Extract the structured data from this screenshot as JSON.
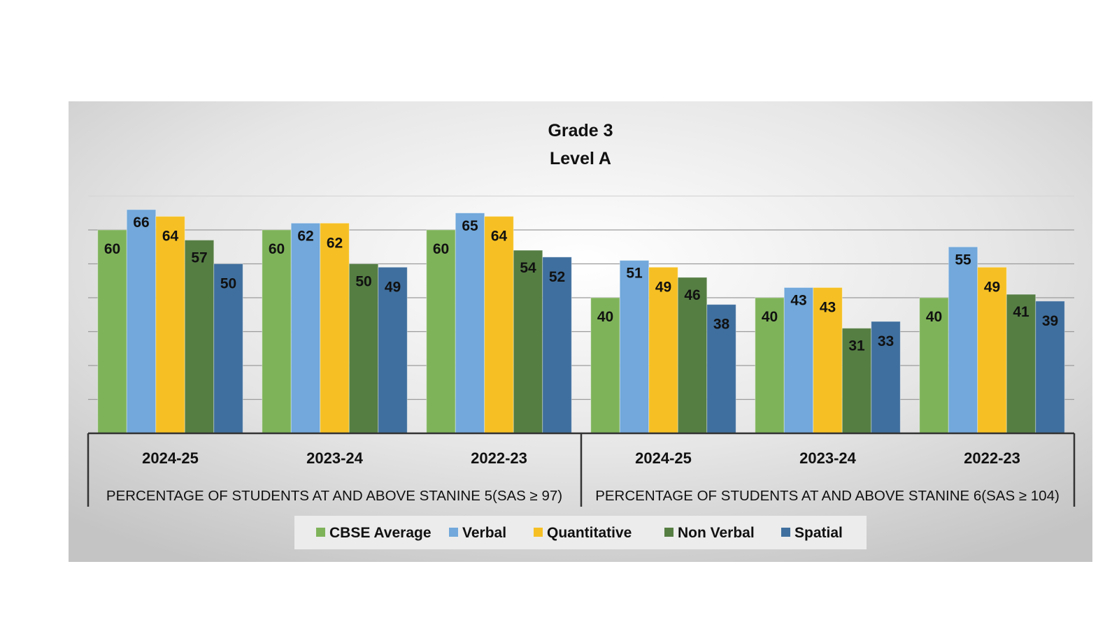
{
  "chart_data": {
    "type": "bar",
    "title": "Grade 3",
    "subtitle": "Level A",
    "ylim": [
      0,
      70
    ],
    "grid": true,
    "legend_position": "bottom",
    "group_labels": [
      "PERCENTAGE OF STUDENTS AT AND  ABOVE STANINE 5(SAS ≥ 97)",
      "PERCENTAGE OF STUDENTS AT AND  ABOVE STANINE 6(SAS ≥ 104)"
    ],
    "categories": [
      "2024-25",
      "2023-24",
      "2022-23",
      "2024-25",
      "2023-24",
      "2022-23"
    ],
    "series": [
      {
        "name": "CBSE Average",
        "color": "#7FB35A",
        "values": [
          60,
          60,
          60,
          40,
          40,
          40
        ]
      },
      {
        "name": "Verbal",
        "color": "#72A8DB",
        "values": [
          66,
          62,
          65,
          51,
          43,
          55
        ]
      },
      {
        "name": "Quantitative",
        "color": "#F6C024",
        "values": [
          64,
          62,
          64,
          49,
          43,
          49
        ]
      },
      {
        "name": "Non Verbal",
        "color": "#557E43",
        "values": [
          57,
          50,
          54,
          46,
          31,
          41
        ]
      },
      {
        "name": "Spatial",
        "color": "#3F6F9E",
        "values": [
          50,
          49,
          52,
          38,
          33,
          39
        ]
      }
    ]
  }
}
